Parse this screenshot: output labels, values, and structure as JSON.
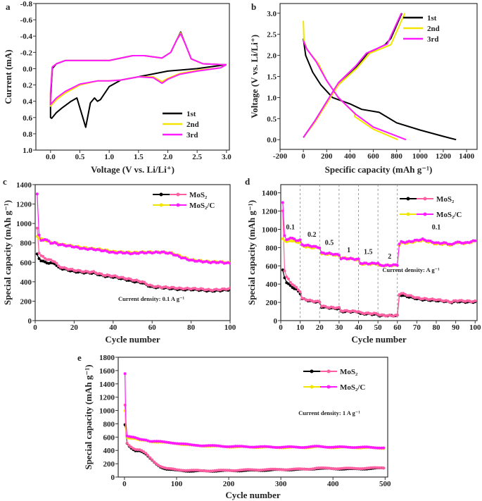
{
  "chart_data": [
    {
      "panel_label": "a",
      "type": "line",
      "xlabel": "Voltage (V vs. Li/Li⁺)",
      "ylabel": "Current (mA)",
      "xlim": [
        -0.25,
        3.05
      ],
      "ylim": [
        1.0,
        -0.8
      ],
      "y_inverted": true,
      "xticks": [
        "0.0",
        "0.5",
        "1.0",
        "1.5",
        "2.0",
        "2.5",
        "3.0"
      ],
      "yticks": [
        "-0.8",
        "-0.6",
        "-0.4",
        "-0.2",
        "0.0",
        "0.2",
        "0.4",
        "0.6",
        "0.8",
        "1.0"
      ],
      "legend": "bottom-right",
      "series": [
        {
          "name": "1st",
          "color": "#000000",
          "x": [
            3.0,
            2.5,
            2.0,
            1.5,
            1.2,
            1.0,
            0.85,
            0.8,
            0.75,
            0.68,
            0.6,
            0.55,
            0.45,
            0.35,
            0.2,
            0.1,
            0.02,
            0.0,
            0.0,
            0.03,
            0.1,
            0.25,
            1.0,
            1.4,
            1.6,
            1.9,
            2.05,
            2.15,
            2.22,
            2.3,
            2.4,
            2.6,
            2.95,
            3.0
          ],
          "y": [
            -0.05,
            0.0,
            0.03,
            0.1,
            0.14,
            0.22,
            0.38,
            0.4,
            0.36,
            0.42,
            0.72,
            0.6,
            0.36,
            0.4,
            0.48,
            0.54,
            0.61,
            0.6,
            0.4,
            0.0,
            -0.06,
            -0.1,
            -0.1,
            -0.16,
            -0.16,
            -0.13,
            -0.2,
            -0.35,
            -0.45,
            -0.3,
            -0.12,
            -0.06,
            -0.05,
            -0.05
          ]
        },
        {
          "name": "2nd",
          "color": "#f2e600",
          "x": [
            3.0,
            2.9,
            2.5,
            2.2,
            2.0,
            1.9,
            1.75,
            1.5,
            1.2,
            1.0,
            0.8,
            0.5,
            0.25,
            0.1,
            0.0,
            0.0,
            0.03,
            0.1,
            0.25,
            1.0,
            1.4,
            1.6,
            1.9,
            2.05,
            2.15,
            2.22,
            2.3,
            2.4,
            2.6,
            2.95,
            3.0
          ],
          "y": [
            -0.05,
            -0.01,
            0.02,
            0.06,
            0.12,
            0.16,
            0.1,
            0.1,
            0.14,
            0.15,
            0.15,
            0.2,
            0.3,
            0.38,
            0.46,
            0.3,
            -0.02,
            -0.06,
            -0.1,
            -0.1,
            -0.16,
            -0.16,
            -0.13,
            -0.2,
            -0.35,
            -0.44,
            -0.3,
            -0.12,
            -0.06,
            -0.05,
            -0.05
          ]
        },
        {
          "name": "3rd",
          "color": "#ff1aff",
          "x": [
            3.0,
            2.9,
            2.5,
            2.2,
            2.0,
            1.9,
            1.75,
            1.5,
            1.2,
            1.0,
            0.8,
            0.5,
            0.25,
            0.1,
            0.0,
            0.0,
            0.03,
            0.1,
            0.25,
            1.0,
            1.4,
            1.6,
            1.9,
            2.05,
            2.15,
            2.22,
            2.3,
            2.4,
            2.6,
            2.95,
            3.0
          ],
          "y": [
            -0.05,
            -0.01,
            0.03,
            0.07,
            0.13,
            0.18,
            0.11,
            0.1,
            0.14,
            0.15,
            0.15,
            0.19,
            0.28,
            0.36,
            0.44,
            0.3,
            -0.02,
            -0.06,
            -0.1,
            -0.1,
            -0.16,
            -0.16,
            -0.13,
            -0.2,
            -0.35,
            -0.43,
            -0.3,
            -0.12,
            -0.06,
            -0.05,
            -0.05
          ]
        }
      ]
    },
    {
      "panel_label": "b",
      "type": "line",
      "xlabel": "Specific capacity (mAh g⁻¹)",
      "ylabel": "Voltage (V vs. Li/Li⁺)",
      "xlim": [
        -200,
        1490
      ],
      "ylim": [
        -0.23,
        3.23
      ],
      "xticks": [
        "-200",
        "0",
        "200",
        "400",
        "600",
        "800",
        "1000",
        "1200",
        "1400"
      ],
      "yticks": [
        "0.0",
        "0.5",
        "1.0",
        "1.5",
        "2.0",
        "2.5",
        "3.0"
      ],
      "legend": "top-right",
      "series": [
        {
          "name": "1st",
          "color": "#000000",
          "segments": [
            {
              "x": [
                0,
                20,
                80,
                150,
                250,
                400,
                500,
                650,
                800,
                1000,
                1200,
                1310
              ],
              "y": [
                2.4,
                2.0,
                1.6,
                1.3,
                1.0,
                0.85,
                0.72,
                0.65,
                0.4,
                0.23,
                0.08,
                0.0
              ]
            },
            {
              "x": [
                0,
                100,
                200,
                300,
                450,
                550,
                700,
                750,
                845
              ],
              "y": [
                0.05,
                0.45,
                0.9,
                1.3,
                1.7,
                2.05,
                2.25,
                2.4,
                3.0
              ]
            }
          ]
        },
        {
          "name": "2nd",
          "color": "#f2e600",
          "segments": [
            {
              "x": [
                0,
                5,
                30,
                130,
                200,
                300,
                440,
                440,
                600,
                810
              ],
              "y": [
                2.82,
                2.35,
                2.15,
                1.8,
                1.4,
                1.0,
                0.62,
                0.55,
                0.25,
                0.0
              ]
            },
            {
              "x": [
                0,
                100,
                210,
                300,
                460,
                570,
                750,
                870
              ],
              "y": [
                0.05,
                0.42,
                0.9,
                1.3,
                1.7,
                2.05,
                2.25,
                3.0
              ]
            }
          ]
        },
        {
          "name": "3rd",
          "color": "#ff1aff",
          "segments": [
            {
              "x": [
                0,
                30,
                110,
                200,
                300,
                450,
                600,
                880
              ],
              "y": [
                2.35,
                2.15,
                1.85,
                1.4,
                1.0,
                0.6,
                0.3,
                0.0
              ]
            },
            {
              "x": [
                0,
                100,
                200,
                300,
                450,
                540,
                720,
                840
              ],
              "y": [
                0.05,
                0.45,
                0.9,
                1.35,
                1.75,
                2.05,
                2.27,
                3.0
              ]
            }
          ]
        }
      ]
    },
    {
      "panel_label": "c",
      "type": "scatter",
      "xlabel": "Cycle number",
      "ylabel": "Special capacity (mAh g⁻¹)",
      "xlim": [
        0,
        100
      ],
      "ylim": [
        0,
        1400
      ],
      "xticks": [
        "0",
        "20",
        "40",
        "60",
        "80",
        "100"
      ],
      "yticks": [
        "0",
        "200",
        "400",
        "600",
        "800",
        "1000",
        "1200",
        "1400"
      ],
      "legend": "top-right",
      "annotation": "Current density: 0.1 A g⁻¹",
      "legend_entries": [
        "MoS₂",
        "MoS₂/C"
      ],
      "x": [
        1,
        2,
        3,
        5,
        8,
        10,
        12,
        15,
        20,
        25,
        30,
        35,
        40,
        45,
        50,
        55,
        58,
        60,
        65,
        70,
        75,
        80,
        85,
        90,
        95,
        100
      ],
      "series": [
        {
          "color": "#000000",
          "values": [
            680,
            640,
            620,
            600,
            590,
            590,
            545,
            530,
            505,
            495,
            490,
            460,
            450,
            430,
            405,
            390,
            360,
            345,
            340,
            330,
            320,
            320,
            315,
            305,
            310,
            320
          ]
        },
        {
          "color": "#ff5fa2",
          "values": [
            950,
            700,
            670,
            640,
            620,
            610,
            560,
            540,
            520,
            505,
            500,
            470,
            460,
            440,
            420,
            400,
            370,
            355,
            345,
            340,
            330,
            330,
            325,
            315,
            320,
            330
          ]
        },
        {
          "color": "#f2e600",
          "values": [
            870,
            850,
            840,
            830,
            805,
            800,
            790,
            780,
            765,
            750,
            740,
            730,
            710,
            705,
            700,
            705,
            705,
            705,
            705,
            695,
            660,
            625,
            615,
            605,
            605,
            595
          ]
        },
        {
          "color": "#ff1aff",
          "values": [
            1310,
            880,
            820,
            840,
            800,
            800,
            785,
            775,
            760,
            740,
            735,
            720,
            700,
            700,
            690,
            700,
            700,
            700,
            705,
            690,
            650,
            620,
            610,
            600,
            600,
            590
          ]
        }
      ]
    },
    {
      "panel_label": "d",
      "type": "scatter",
      "xlabel": "Cycle number",
      "ylabel": "Special capacity (mAh g⁻¹)",
      "xlim": [
        0,
        101
      ],
      "ylim": [
        0,
        1490
      ],
      "xticks": [
        "0",
        "10",
        "20",
        "30",
        "40",
        "50",
        "60",
        "70",
        "80",
        "90",
        "100"
      ],
      "yticks": [
        "0",
        "200",
        "400",
        "600",
        "800",
        "1000",
        "1200",
        "1400"
      ],
      "legend": "top-right",
      "annotation": "Current density: A g⁻¹",
      "legend_entries": [
        "MoS₂",
        "MoS₂/C"
      ],
      "dashed_lines_at": [
        10,
        20,
        30,
        40,
        50,
        60
      ],
      "rate_labels": [
        {
          "text": "0.1",
          "x": 5,
          "y": 1000
        },
        {
          "text": "0.2",
          "x": 16,
          "y": 920
        },
        {
          "text": "0.5",
          "x": 25,
          "y": 830
        },
        {
          "text": "1",
          "x": 35,
          "y": 750
        },
        {
          "text": "1.5",
          "x": 45,
          "y": 730
        },
        {
          "text": "2",
          "x": 56,
          "y": 680
        },
        {
          "text": "0.1",
          "x": 80,
          "y": 1000
        }
      ],
      "x": [
        1,
        2,
        3,
        5,
        8,
        10,
        11,
        15,
        20,
        21,
        25,
        30,
        31,
        35,
        40,
        41,
        45,
        50,
        51,
        55,
        60,
        61,
        62,
        65,
        70,
        73,
        80,
        85,
        88,
        90,
        95,
        100
      ],
      "series": [
        {
          "color": "#000000",
          "values": [
            550,
            470,
            420,
            380,
            340,
            300,
            240,
            215,
            200,
            150,
            140,
            130,
            100,
            100,
            95,
            75,
            75,
            65,
            55,
            55,
            55,
            280,
            280,
            265,
            240,
            230,
            220,
            210,
            200,
            210,
            205,
            205
          ]
        },
        {
          "color": "#ff5fa2",
          "values": [
            1200,
            550,
            480,
            420,
            360,
            320,
            240,
            220,
            205,
            160,
            145,
            140,
            110,
            105,
            100,
            85,
            80,
            75,
            60,
            55,
            55,
            290,
            300,
            280,
            250,
            240,
            230,
            215,
            205,
            220,
            215,
            210
          ]
        },
        {
          "color": "#f2e600",
          "values": [
            900,
            880,
            860,
            880,
            860,
            860,
            820,
            800,
            800,
            730,
            730,
            710,
            690,
            680,
            665,
            620,
            620,
            620,
            600,
            605,
            605,
            830,
            850,
            850,
            870,
            880,
            840,
            840,
            825,
            855,
            845,
            870
          ]
        },
        {
          "color": "#ff1aff",
          "values": [
            1300,
            930,
            880,
            910,
            880,
            880,
            830,
            820,
            800,
            740,
            735,
            720,
            680,
            680,
            670,
            630,
            625,
            630,
            605,
            605,
            610,
            840,
            860,
            860,
            880,
            890,
            850,
            850,
            830,
            860,
            850,
            875
          ]
        }
      ]
    },
    {
      "panel_label": "e",
      "type": "scatter",
      "xlabel": "Cycle number",
      "ylabel": "Special capacity (mAh g⁻¹)",
      "xlim": [
        -12,
        505
      ],
      "ylim": [
        0,
        1800
      ],
      "xticks": [
        "0",
        "100",
        "200",
        "300",
        "400",
        "500"
      ],
      "yticks": [
        "0",
        "200",
        "400",
        "600",
        "800",
        "1000",
        "1200",
        "1400",
        "1600",
        "1800"
      ],
      "legend": "top-right",
      "annotation": "Current density: 1 A g⁻¹",
      "legend_entries": [
        "MoS₂",
        "MoS₂/C"
      ],
      "x": [
        1,
        2,
        3,
        5,
        10,
        20,
        30,
        40,
        50,
        60,
        70,
        80,
        100,
        130,
        150,
        200,
        250,
        300,
        350,
        370,
        400,
        440,
        500
      ],
      "series": [
        {
          "color": "#000000",
          "values": [
            780,
            740,
            700,
            500,
            450,
            400,
            400,
            350,
            270,
            200,
            150,
            120,
            100,
            90,
            90,
            95,
            100,
            110,
            115,
            130,
            125,
            120,
            135
          ]
        },
        {
          "color": "#ff5fa2",
          "values": [
            1080,
            800,
            600,
            510,
            470,
            420,
            410,
            360,
            280,
            210,
            160,
            130,
            110,
            100,
            95,
            100,
            110,
            115,
            120,
            135,
            130,
            130,
            140
          ]
        },
        {
          "color": "#f2e600",
          "values": [
            1000,
            950,
            700,
            600,
            590,
            580,
            550,
            550,
            535,
            530,
            525,
            515,
            505,
            475,
            470,
            455,
            450,
            445,
            445,
            455,
            445,
            445,
            435
          ]
        },
        {
          "color": "#ff1aff",
          "values": [
            1560,
            1050,
            800,
            620,
            610,
            590,
            560,
            560,
            540,
            540,
            530,
            520,
            510,
            480,
            475,
            460,
            455,
            450,
            450,
            460,
            450,
            450,
            440
          ]
        }
      ]
    }
  ]
}
